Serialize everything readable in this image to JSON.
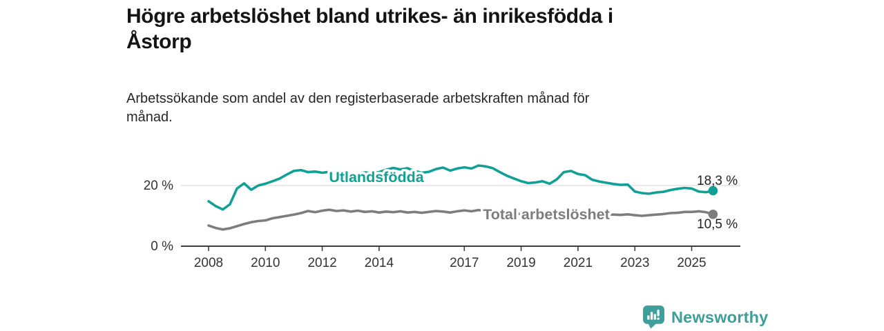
{
  "header": {
    "title_line1": "Högre arbetslöshet bland utrikes- än inrikesfödda i",
    "title_line2": "Åstorp",
    "subtitle_line1": "Arbetssökande som andel av den registerbaserade arbetskraften månad för",
    "subtitle_line2": "månad."
  },
  "footer": {
    "brand_name": "Newsworthy",
    "brand_icon": "bar-chart-speech-bubble-icon"
  },
  "colors": {
    "utlandsfodda_teal": "#10a096",
    "total_gray": "#7d7d7d",
    "brand_teal": "#3d9e9a",
    "gridline": "#dcdcdc",
    "axis": "#3d3d3d",
    "text_dark": "#141414"
  },
  "chart_data": {
    "type": "line",
    "title": "Högre arbetslöshet bland utrikes- än inrikesfödda i Åstorp",
    "subtitle": "Arbetssökande som andel av den registerbaserade arbetskraften månad för månad.",
    "x_unit": "year (decimal, quarterly samples of the monthly series)",
    "ylim": [
      0,
      30
    ],
    "xlim": [
      2007,
      2026.7
    ],
    "grid": "horizontal gridline at 20 % only",
    "legend_position": "inline labels on lines",
    "xticks": [
      2008,
      2010,
      2012,
      2014,
      2017,
      2019,
      2021,
      2023,
      2025
    ],
    "yticks": [
      {
        "value": 0,
        "label": "0 %"
      },
      {
        "value": 20,
        "label": "20 %"
      }
    ],
    "x": [
      2008,
      2008.25,
      2008.5,
      2008.75,
      2009,
      2009.25,
      2009.5,
      2009.75,
      2010,
      2010.25,
      2010.5,
      2010.75,
      2011,
      2011.25,
      2011.5,
      2011.75,
      2012,
      2012.25,
      2012.5,
      2012.75,
      2013,
      2013.25,
      2013.5,
      2013.75,
      2014,
      2014.25,
      2014.5,
      2014.75,
      2015,
      2015.25,
      2015.5,
      2015.75,
      2016,
      2016.25,
      2016.5,
      2016.75,
      2017,
      2017.25,
      2017.5,
      2017.75,
      2018,
      2018.25,
      2018.5,
      2018.75,
      2019,
      2019.25,
      2019.5,
      2019.75,
      2020,
      2020.25,
      2020.5,
      2020.75,
      2021,
      2021.25,
      2021.5,
      2021.75,
      2022,
      2022.25,
      2022.5,
      2022.75,
      2023,
      2023.25,
      2023.5,
      2023.75,
      2024,
      2024.25,
      2024.5,
      2024.75,
      2025,
      2025.25,
      2025.5,
      2025.75
    ],
    "series": [
      {
        "name": "Utlandsfödda",
        "color": "#10a096",
        "end_value": 18.3,
        "end_label": "18,3 %",
        "values": [
          14.8,
          13.2,
          12.1,
          13.8,
          19.0,
          20.7,
          18.6,
          20.0,
          20.6,
          21.4,
          22.3,
          23.6,
          24.8,
          25.1,
          24.4,
          24.6,
          24.2,
          24.5,
          24.1,
          23.8,
          23.6,
          24.0,
          24.3,
          24.1,
          24.4,
          25.2,
          25.8,
          25.3,
          25.7,
          24.8,
          24.2,
          24.5,
          25.4,
          25.9,
          24.9,
          25.6,
          26.0,
          25.6,
          26.6,
          26.3,
          25.7,
          24.4,
          23.2,
          22.3,
          21.4,
          20.8,
          21.0,
          21.4,
          20.6,
          22.0,
          24.4,
          24.8,
          23.8,
          23.4,
          21.9,
          21.3,
          20.9,
          20.5,
          20.2,
          20.3,
          18.0,
          17.5,
          17.3,
          17.7,
          17.9,
          18.5,
          18.9,
          19.2,
          19.0,
          18.0,
          17.8,
          18.3
        ]
      },
      {
        "name": "Total arbetslöshet",
        "color": "#7d7d7d",
        "end_value": 10.5,
        "end_label": "10,5 %",
        "values": [
          6.8,
          6.0,
          5.5,
          5.9,
          6.6,
          7.3,
          7.9,
          8.3,
          8.5,
          9.2,
          9.6,
          10.0,
          10.4,
          10.9,
          11.6,
          11.2,
          11.7,
          12.0,
          11.6,
          11.8,
          11.4,
          11.7,
          11.3,
          11.5,
          11.1,
          11.4,
          11.2,
          11.5,
          11.1,
          11.3,
          11.0,
          11.3,
          11.6,
          11.4,
          11.1,
          11.5,
          11.8,
          11.5,
          11.9,
          11.6,
          11.4,
          11.2,
          11.0,
          10.8,
          10.6,
          10.5,
          10.6,
          10.5,
          10.7,
          11.3,
          11.6,
          11.4,
          11.2,
          11.0,
          10.8,
          10.6,
          10.5,
          10.4,
          10.3,
          10.5,
          10.2,
          10.0,
          10.2,
          10.4,
          10.6,
          10.9,
          11.0,
          11.3,
          11.3,
          11.5,
          11.2,
          10.5
        ]
      }
    ]
  }
}
